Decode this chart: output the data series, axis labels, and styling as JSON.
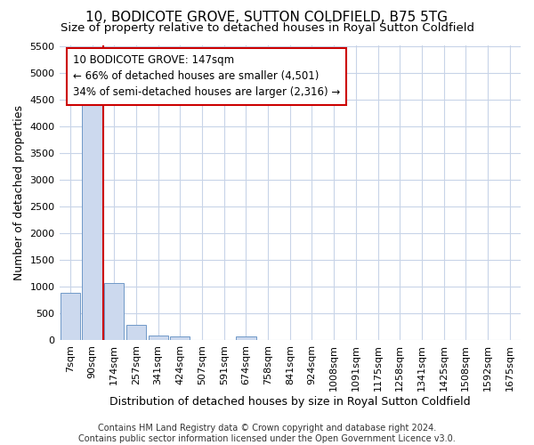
{
  "title": "10, BODICOTE GROVE, SUTTON COLDFIELD, B75 5TG",
  "subtitle": "Size of property relative to detached houses in Royal Sutton Coldfield",
  "xlabel": "Distribution of detached houses by size in Royal Sutton Coldfield",
  "ylabel": "Number of detached properties",
  "footnote": "Contains HM Land Registry data © Crown copyright and database right 2024.\nContains public sector information licensed under the Open Government Licence v3.0.",
  "annotation_line1": "10 BODICOTE GROVE: 147sqm",
  "annotation_line2": "← 66% of detached houses are smaller (4,501)",
  "annotation_line3": "34% of semi-detached houses are larger (2,316) →",
  "bar_labels": [
    "7sqm",
    "90sqm",
    "174sqm",
    "257sqm",
    "341sqm",
    "424sqm",
    "507sqm",
    "591sqm",
    "674sqm",
    "758sqm",
    "841sqm",
    "924sqm",
    "1008sqm",
    "1091sqm",
    "1175sqm",
    "1258sqm",
    "1341sqm",
    "1425sqm",
    "1508sqm",
    "1592sqm",
    "1675sqm"
  ],
  "bar_values": [
    880,
    4560,
    1060,
    280,
    80,
    70,
    0,
    0,
    60,
    0,
    0,
    0,
    0,
    0,
    0,
    0,
    0,
    0,
    0,
    0,
    0
  ],
  "bar_color": "#ccd9ee",
  "bar_edge_color": "#7099c8",
  "red_line_x": 1.5,
  "highlight_bar_edge": "#cc0000",
  "ylim": [
    0,
    5500
  ],
  "yticks": [
    0,
    500,
    1000,
    1500,
    2000,
    2500,
    3000,
    3500,
    4000,
    4500,
    5000,
    5500
  ],
  "grid_color": "#c8d4e8",
  "bg_color": "#ffffff",
  "plot_bg_color": "#ffffff",
  "title_fontsize": 11,
  "subtitle_fontsize": 9.5,
  "axis_label_fontsize": 9,
  "tick_fontsize": 8,
  "footnote_fontsize": 7
}
